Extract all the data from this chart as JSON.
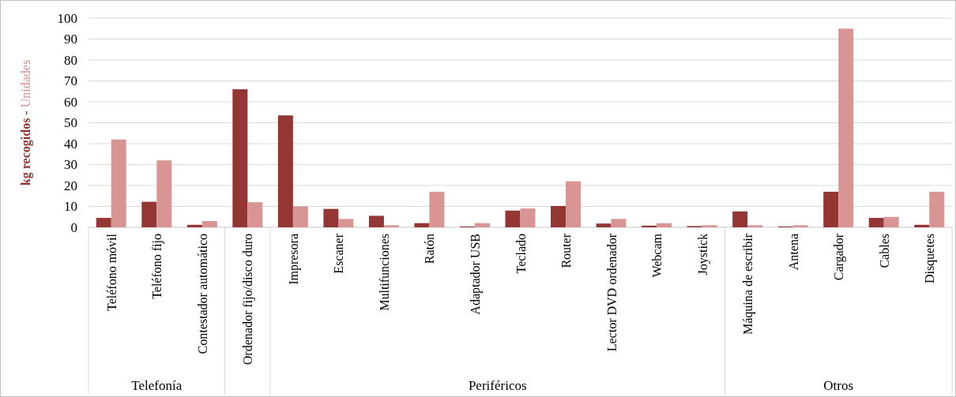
{
  "chart_data": {
    "type": "bar",
    "ylabel": "kg recogidos - Unidades",
    "categories": [
      "Teléfono móvil",
      "Teléfono fijo",
      "Contestador automático",
      "Ordenador fijo/disco duro",
      "Impresora",
      "Escaner",
      "Multifunciones",
      "Ratón",
      "Adaptador USB",
      "Teclado",
      "Router",
      "Lector DVD ordenador",
      "Webcam",
      "Joystick",
      "Máquina de escribir",
      "Antena",
      "Cargador",
      "Cables",
      "Disquetes"
    ],
    "series": [
      {
        "color": "#943634",
        "values": [
          4.5,
          12.2,
          1.2,
          66,
          53.5,
          8.8,
          5.5,
          2,
          0.4,
          8,
          10.2,
          1.8,
          0.8,
          0.6,
          7.6,
          0.4,
          17,
          4.5,
          1.2
        ]
      },
      {
        "color": "#d99594",
        "values": [
          42,
          32,
          3,
          12,
          10,
          4,
          1,
          17,
          2,
          9,
          22,
          4,
          2,
          1,
          1,
          1,
          95,
          5,
          17
        ]
      }
    ],
    "ylim": [
      0,
      100
    ],
    "yticks": [
      0,
      10,
      20,
      30,
      40,
      50,
      60,
      70,
      80,
      90,
      100
    ],
    "grid": "y",
    "annotations": [
      "Telefonía",
      "Periféricos",
      "Otros"
    ]
  }
}
